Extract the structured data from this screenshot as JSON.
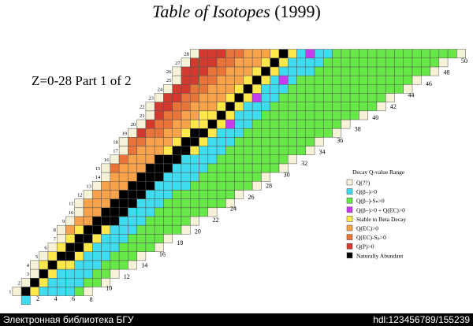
{
  "header": {
    "title_italic": "Table of Isotopes",
    "title_year": "(1999)",
    "subtitle": "Z=0-28 Part 1 of 2"
  },
  "chart": {
    "z_labels": [
      1,
      2,
      3,
      4,
      5,
      6,
      7,
      8,
      9,
      10,
      11,
      12,
      13,
      14,
      15,
      16,
      17,
      18,
      19,
      20,
      21,
      22,
      23,
      24,
      25,
      26,
      27,
      28
    ],
    "n_labels": [
      2,
      4,
      6,
      8,
      10,
      12,
      14,
      16,
      18,
      20,
      22,
      24,
      26,
      28,
      30,
      32,
      34,
      36,
      38,
      40,
      42,
      44,
      46,
      48,
      50
    ]
  },
  "legend": {
    "title": "Decay Q-value Range",
    "entries": [
      {
        "label": "Q(??)",
        "color": "#f6f2d8"
      },
      {
        "label": "Q(β–)>0",
        "color": "#3fdcf0"
      },
      {
        "label": "Q(β–)-Sₙ>0",
        "color": "#66e846"
      },
      {
        "label": "Q(β–)>0 + Q(EC)>0",
        "color": "#c83cf0"
      },
      {
        "label": "Stable to Beta Decay",
        "color": "#ffe84a"
      },
      {
        "label": "Q(EC)>0",
        "color": "#f8a24a"
      },
      {
        "label": "Q(EC)-Sₚ>0",
        "color": "#e8743a"
      },
      {
        "label": "Q(P)>0",
        "color": "#d23a30"
      },
      {
        "label": "Naturally Abundant",
        "color": "#000000"
      }
    ]
  },
  "footer": {
    "left": "Электронная библиотека БГУ",
    "right": "hdl:123456789/155239"
  }
}
